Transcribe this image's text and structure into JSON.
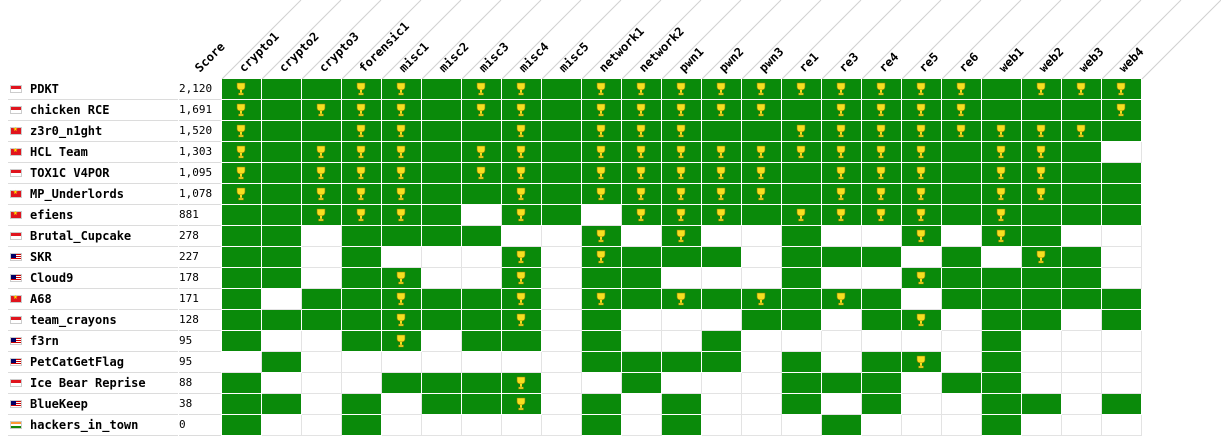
{
  "colors": {
    "solved": "#0a8a0a",
    "trophy": "#f5e020"
  },
  "columns": {
    "score_label": "Score",
    "challenges": [
      "crypto1",
      "crypto2",
      "crypto3",
      "forensic1",
      "misc1",
      "misc2",
      "misc3",
      "misc4",
      "misc5",
      "network1",
      "network2",
      "pwn1",
      "pwn2",
      "pwn3",
      "re1",
      "re3",
      "re4",
      "re5",
      "re6",
      "web1",
      "web2",
      "web3",
      "web4"
    ]
  },
  "teams": [
    {
      "name": "PDKT",
      "score": "2,120",
      "flag": "flag-id",
      "solved": [
        1,
        1,
        1,
        1,
        1,
        1,
        1,
        1,
        1,
        1,
        1,
        1,
        1,
        1,
        1,
        1,
        1,
        1,
        1,
        1,
        1,
        1,
        1
      ],
      "first": [
        1,
        0,
        0,
        1,
        1,
        0,
        1,
        1,
        0,
        1,
        1,
        1,
        1,
        1,
        1,
        1,
        1,
        1,
        1,
        0,
        1,
        1,
        1
      ]
    },
    {
      "name": "chicken RCE",
      "score": "1,691",
      "flag": "flag-id",
      "solved": [
        1,
        1,
        1,
        1,
        1,
        1,
        1,
        1,
        1,
        1,
        1,
        1,
        1,
        1,
        1,
        1,
        1,
        1,
        1,
        1,
        1,
        1,
        1
      ],
      "first": [
        1,
        0,
        1,
        1,
        1,
        0,
        1,
        1,
        0,
        1,
        1,
        1,
        1,
        1,
        0,
        1,
        1,
        1,
        1,
        0,
        0,
        0,
        1
      ]
    },
    {
      "name": "z3r0_n1ght",
      "score": "1,520",
      "flag": "flag-vn",
      "solved": [
        1,
        1,
        1,
        1,
        1,
        1,
        1,
        1,
        1,
        1,
        1,
        1,
        1,
        1,
        1,
        1,
        1,
        1,
        1,
        1,
        1,
        1,
        1
      ],
      "first": [
        1,
        0,
        0,
        1,
        1,
        0,
        0,
        1,
        0,
        1,
        1,
        1,
        0,
        0,
        1,
        1,
        1,
        1,
        1,
        1,
        1,
        1,
        0
      ]
    },
    {
      "name": "HCL Team",
      "score": "1,303",
      "flag": "flag-vn",
      "solved": [
        1,
        1,
        1,
        1,
        1,
        1,
        1,
        1,
        1,
        1,
        1,
        1,
        1,
        1,
        1,
        1,
        1,
        1,
        1,
        1,
        1,
        1,
        0
      ],
      "first": [
        1,
        0,
        1,
        1,
        1,
        0,
        1,
        1,
        0,
        1,
        1,
        1,
        1,
        1,
        1,
        1,
        1,
        1,
        0,
        1,
        1,
        0,
        0
      ]
    },
    {
      "name": "TOX1C V4POR",
      "score": "1,095",
      "flag": "flag-id",
      "solved": [
        1,
        1,
        1,
        1,
        1,
        1,
        1,
        1,
        1,
        1,
        1,
        1,
        1,
        1,
        1,
        1,
        1,
        1,
        1,
        1,
        1,
        1,
        1
      ],
      "first": [
        1,
        0,
        1,
        1,
        1,
        0,
        1,
        1,
        0,
        1,
        1,
        1,
        1,
        1,
        0,
        1,
        1,
        1,
        0,
        1,
        1,
        0,
        0
      ]
    },
    {
      "name": "MP_Underlords",
      "score": "1,078",
      "flag": "flag-vn",
      "solved": [
        1,
        1,
        1,
        1,
        1,
        1,
        1,
        1,
        1,
        1,
        1,
        1,
        1,
        1,
        1,
        1,
        1,
        1,
        1,
        1,
        1,
        1,
        1
      ],
      "first": [
        1,
        0,
        1,
        1,
        1,
        0,
        0,
        1,
        0,
        1,
        1,
        1,
        1,
        1,
        0,
        1,
        1,
        1,
        0,
        1,
        1,
        0,
        0
      ]
    },
    {
      "name": "efiens",
      "score": "881",
      "flag": "flag-vn",
      "solved": [
        1,
        1,
        1,
        1,
        1,
        1,
        0,
        1,
        1,
        0,
        1,
        1,
        1,
        1,
        1,
        1,
        1,
        1,
        1,
        1,
        1,
        1,
        1
      ],
      "first": [
        0,
        0,
        1,
        1,
        1,
        0,
        0,
        1,
        0,
        0,
        1,
        1,
        1,
        0,
        1,
        1,
        1,
        1,
        0,
        1,
        0,
        0,
        0
      ]
    },
    {
      "name": "Brutal_Cupcake",
      "score": "278",
      "flag": "flag-id",
      "solved": [
        1,
        1,
        0,
        1,
        1,
        1,
        1,
        0,
        0,
        1,
        0,
        1,
        0,
        0,
        1,
        0,
        0,
        1,
        0,
        1,
        1,
        0,
        0
      ],
      "first": [
        0,
        0,
        0,
        0,
        0,
        0,
        0,
        0,
        0,
        1,
        0,
        1,
        0,
        0,
        0,
        0,
        0,
        1,
        0,
        1,
        0,
        0,
        0
      ]
    },
    {
      "name": "SKR",
      "score": "227",
      "flag": "flag-my",
      "solved": [
        1,
        1,
        0,
        1,
        0,
        0,
        0,
        1,
        0,
        1,
        1,
        1,
        1,
        0,
        1,
        1,
        1,
        0,
        1,
        0,
        1,
        1,
        0
      ],
      "first": [
        0,
        0,
        0,
        0,
        0,
        0,
        0,
        1,
        0,
        1,
        0,
        0,
        0,
        0,
        0,
        0,
        0,
        0,
        0,
        0,
        1,
        0,
        0
      ]
    },
    {
      "name": "Cloud9",
      "score": "178",
      "flag": "flag-my",
      "solved": [
        1,
        1,
        0,
        1,
        1,
        0,
        0,
        1,
        0,
        1,
        1,
        0,
        0,
        0,
        1,
        0,
        0,
        1,
        1,
        1,
        1,
        1,
        0
      ],
      "first": [
        0,
        0,
        0,
        0,
        1,
        0,
        0,
        1,
        0,
        0,
        0,
        0,
        0,
        0,
        0,
        0,
        0,
        1,
        0,
        0,
        0,
        0,
        0
      ]
    },
    {
      "name": "A68",
      "score": "171",
      "flag": "flag-vn",
      "solved": [
        1,
        0,
        1,
        1,
        1,
        1,
        1,
        1,
        0,
        1,
        1,
        1,
        1,
        1,
        1,
        1,
        1,
        0,
        1,
        1,
        1,
        1,
        1
      ],
      "first": [
        0,
        0,
        0,
        0,
        1,
        0,
        0,
        1,
        0,
        1,
        0,
        1,
        0,
        1,
        0,
        1,
        0,
        0,
        0,
        0,
        0,
        0,
        0
      ]
    },
    {
      "name": "team_crayons",
      "score": "128",
      "flag": "flag-id",
      "solved": [
        1,
        1,
        1,
        1,
        1,
        1,
        1,
        1,
        0,
        1,
        0,
        0,
        0,
        1,
        1,
        0,
        1,
        1,
        0,
        1,
        1,
        0,
        1
      ],
      "first": [
        0,
        0,
        0,
        0,
        1,
        0,
        0,
        1,
        0,
        0,
        0,
        0,
        0,
        0,
        0,
        0,
        0,
        1,
        0,
        0,
        0,
        0,
        0
      ]
    },
    {
      "name": "f3rn",
      "score": "95",
      "flag": "flag-my",
      "solved": [
        1,
        0,
        0,
        1,
        1,
        0,
        1,
        1,
        0,
        1,
        0,
        0,
        1,
        0,
        0,
        0,
        0,
        0,
        0,
        1,
        0,
        0,
        0
      ],
      "first": [
        0,
        0,
        0,
        0,
        1,
        0,
        0,
        0,
        0,
        0,
        0,
        0,
        0,
        0,
        0,
        0,
        0,
        0,
        0,
        0,
        0,
        0,
        0
      ]
    },
    {
      "name": "PetCatGetFlag",
      "score": "95",
      "flag": "flag-my",
      "solved": [
        0,
        1,
        0,
        0,
        0,
        0,
        0,
        0,
        0,
        1,
        1,
        1,
        1,
        0,
        1,
        0,
        1,
        1,
        0,
        1,
        0,
        0,
        0
      ],
      "first": [
        0,
        0,
        0,
        0,
        0,
        0,
        0,
        0,
        0,
        0,
        0,
        0,
        0,
        0,
        0,
        0,
        0,
        1,
        0,
        0,
        0,
        0,
        0
      ]
    },
    {
      "name": "Ice Bear Reprise",
      "score": "88",
      "flag": "flag-id",
      "solved": [
        1,
        0,
        0,
        0,
        1,
        1,
        1,
        1,
        0,
        0,
        1,
        0,
        0,
        0,
        1,
        1,
        1,
        0,
        1,
        1,
        0,
        0,
        0
      ],
      "first": [
        0,
        0,
        0,
        0,
        0,
        0,
        0,
        1,
        0,
        0,
        0,
        0,
        0,
        0,
        0,
        0,
        0,
        0,
        0,
        0,
        0,
        0,
        0
      ]
    },
    {
      "name": "BlueKeep",
      "score": "38",
      "flag": "flag-my",
      "solved": [
        1,
        1,
        0,
        1,
        0,
        1,
        1,
        1,
        0,
        1,
        0,
        1,
        0,
        0,
        1,
        0,
        1,
        0,
        0,
        1,
        1,
        0,
        1
      ],
      "first": [
        0,
        0,
        0,
        0,
        0,
        0,
        0,
        1,
        0,
        0,
        0,
        0,
        0,
        0,
        0,
        0,
        0,
        0,
        0,
        0,
        0,
        0,
        0
      ]
    },
    {
      "name": "hackers_in_town",
      "score": "0",
      "flag": "flag-in",
      "solved": [
        1,
        0,
        0,
        1,
        0,
        0,
        0,
        0,
        0,
        1,
        0,
        1,
        0,
        0,
        0,
        1,
        0,
        0,
        0,
        1,
        0,
        0,
        0
      ],
      "first": [
        0,
        0,
        0,
        0,
        0,
        0,
        0,
        0,
        0,
        0,
        0,
        0,
        0,
        0,
        0,
        0,
        0,
        0,
        0,
        0,
        0,
        0,
        0
      ]
    }
  ]
}
